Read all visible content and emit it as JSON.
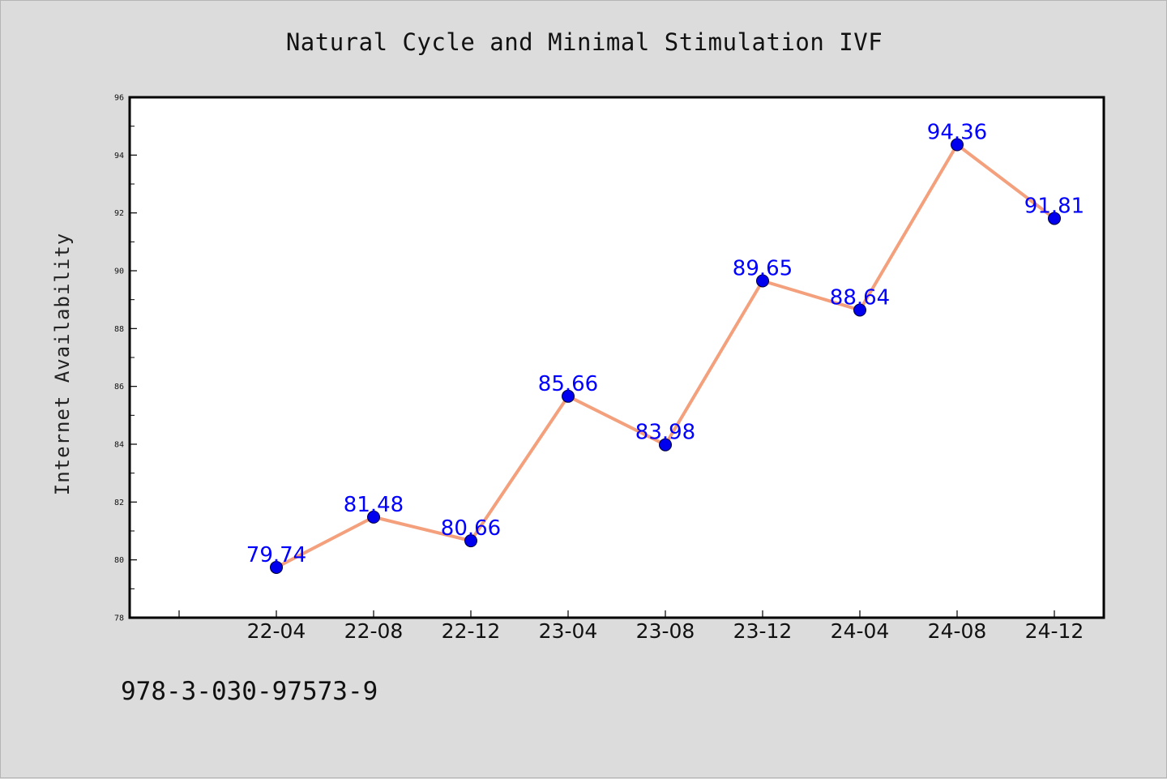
{
  "chart_data": {
    "type": "line",
    "title": "Natural Cycle and Minimal Stimulation IVF",
    "xlabel": "",
    "ylabel": "Internet Availability",
    "categories": [
      "22-04",
      "22-08",
      "22-12",
      "23-04",
      "23-08",
      "23-12",
      "24-04",
      "24-08",
      "24-12"
    ],
    "series": [
      {
        "values": [
          79.74,
          81.48,
          80.66,
          85.66,
          83.98,
          89.65,
          88.64,
          94.36,
          91.81
        ],
        "data_labels": [
          "79.74",
          "81.48",
          "80.66",
          "85.66",
          "83.98",
          "89.65",
          "88.64",
          "94.36",
          "91.81"
        ]
      }
    ],
    "ylim": [
      78,
      96
    ],
    "yticks": [
      78,
      80,
      82,
      84,
      86,
      88,
      90,
      92,
      94,
      96
    ],
    "ytick_labels": [
      "78",
      "80",
      "82",
      "84",
      "86",
      "88",
      "90",
      "92",
      "94",
      "96"
    ],
    "grid": false,
    "colors": {
      "line": "#f4a07c",
      "marker": "#0000ee",
      "data_label": "#0000ff",
      "plot_background": "#ffffff",
      "figure_background": "#dcdcdc"
    }
  },
  "footer": {
    "identifier": "978-3-030-97573-9"
  }
}
